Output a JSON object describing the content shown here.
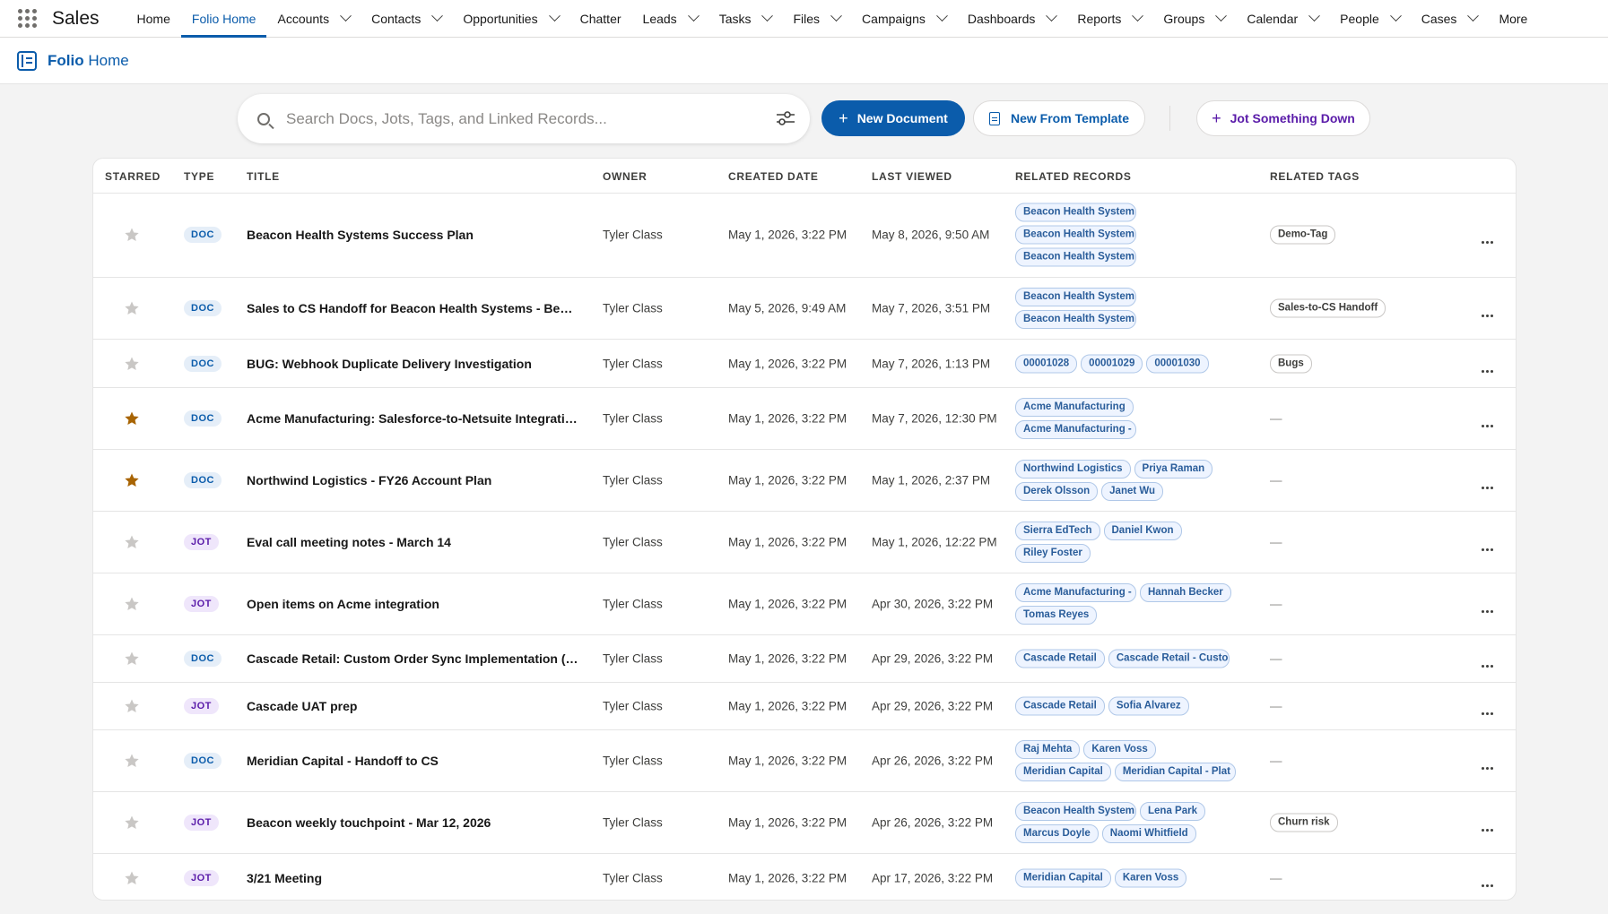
{
  "app": {
    "name": "Sales"
  },
  "nav": [
    {
      "label": "Home",
      "dropdown": false,
      "active": false
    },
    {
      "label": "Folio Home",
      "dropdown": false,
      "active": true
    },
    {
      "label": "Accounts",
      "dropdown": true,
      "active": false
    },
    {
      "label": "Contacts",
      "dropdown": true,
      "active": false
    },
    {
      "label": "Opportunities",
      "dropdown": true,
      "active": false
    },
    {
      "label": "Chatter",
      "dropdown": false,
      "active": false
    },
    {
      "label": "Leads",
      "dropdown": true,
      "active": false
    },
    {
      "label": "Tasks",
      "dropdown": true,
      "active": false
    },
    {
      "label": "Files",
      "dropdown": true,
      "active": false
    },
    {
      "label": "Campaigns",
      "dropdown": true,
      "active": false
    },
    {
      "label": "Dashboards",
      "dropdown": true,
      "active": false
    },
    {
      "label": "Reports",
      "dropdown": true,
      "active": false
    },
    {
      "label": "Groups",
      "dropdown": true,
      "active": false
    },
    {
      "label": "Calendar",
      "dropdown": true,
      "active": false
    },
    {
      "label": "People",
      "dropdown": true,
      "active": false
    },
    {
      "label": "Cases",
      "dropdown": true,
      "active": false
    },
    {
      "label": "More",
      "dropdown": false,
      "active": false
    }
  ],
  "page": {
    "title_bold": "Folio",
    "title_rest": " Home"
  },
  "search": {
    "placeholder": "Search Docs, Jots, Tags, and Linked Records..."
  },
  "toolbar": {
    "new_document": "New Document",
    "new_from_template": "New From Template",
    "jot": "Jot Something Down"
  },
  "table": {
    "headers": {
      "starred": "STARRED",
      "type": "TYPE",
      "title": "TITLE",
      "owner": "OWNER",
      "created": "CREATED DATE",
      "viewed": "LAST VIEWED",
      "records": "RELATED RECORDS",
      "tags": "RELATED TAGS"
    },
    "rows": [
      {
        "starred": false,
        "type": "DOC",
        "title": "Beacon Health Systems Success Plan",
        "owner": "Tyler Class",
        "created": "May 1, 2026, 3:22 PM",
        "viewed": "May 8, 2026, 9:50 AM",
        "records": [
          "Beacon Health System",
          "Beacon Health System",
          "Beacon Health System"
        ],
        "records_layout": "col",
        "tags": [
          "Demo-Tag"
        ]
      },
      {
        "starred": false,
        "type": "DOC",
        "title": "Sales to CS Handoff for Beacon Health Systems - Behavi...",
        "owner": "Tyler Class",
        "created": "May 5, 2026, 9:49 AM",
        "viewed": "May 7, 2026, 3:51 PM",
        "records": [
          "Beacon Health System",
          "Beacon Health System"
        ],
        "records_layout": "col",
        "tags": [
          "Sales-to-CS Handoff"
        ]
      },
      {
        "starred": false,
        "type": "DOC",
        "title": "BUG: Webhook Duplicate Delivery Investigation",
        "owner": "Tyler Class",
        "created": "May 1, 2026, 3:22 PM",
        "viewed": "May 7, 2026, 1:13 PM",
        "records": [
          "00001028",
          "00001029",
          "00001030"
        ],
        "records_layout": "wrap",
        "tags": [
          "Bugs"
        ]
      },
      {
        "starred": true,
        "type": "DOC",
        "title": "Acme Manufacturing: Salesforce-to-Netsuite Integratio...",
        "owner": "Tyler Class",
        "created": "May 1, 2026, 3:22 PM",
        "viewed": "May 7, 2026, 12:30 PM",
        "records": [
          "Acme Manufacturing",
          "Acme Manufacturing -"
        ],
        "records_layout": "col",
        "tags": []
      },
      {
        "starred": true,
        "type": "DOC",
        "title": "Northwind Logistics - FY26 Account Plan",
        "owner": "Tyler Class",
        "created": "May 1, 2026, 3:22 PM",
        "viewed": "May 1, 2026, 2:37 PM",
        "records": [
          "Northwind Logistics",
          "Priya Raman",
          "Derek Olsson",
          "Janet Wu"
        ],
        "records_layout": "wrap",
        "tags": []
      },
      {
        "starred": false,
        "type": "JOT",
        "title": "Eval call meeting notes - March 14",
        "owner": "Tyler Class",
        "created": "May 1, 2026, 3:22 PM",
        "viewed": "May 1, 2026, 12:22 PM",
        "records": [
          "Sierra EdTech",
          "Daniel Kwon",
          "Riley Foster"
        ],
        "records_layout": "wrap",
        "tags": []
      },
      {
        "starred": false,
        "type": "JOT",
        "title": "Open items on Acme integration",
        "owner": "Tyler Class",
        "created": "May 1, 2026, 3:22 PM",
        "viewed": "Apr 30, 2026, 3:22 PM",
        "records": [
          "Acme Manufacturing -",
          "Hannah Becker",
          "Tomas Reyes"
        ],
        "records_layout": "wrap",
        "tags": []
      },
      {
        "starred": false,
        "type": "DOC",
        "title": "Cascade Retail: Custom Order Sync Implementation (Ph...",
        "owner": "Tyler Class",
        "created": "May 1, 2026, 3:22 PM",
        "viewed": "Apr 29, 2026, 3:22 PM",
        "records": [
          "Cascade Retail",
          "Cascade Retail - Custo"
        ],
        "records_layout": "wrap",
        "tags": []
      },
      {
        "starred": false,
        "type": "JOT",
        "title": "Cascade UAT prep",
        "owner": "Tyler Class",
        "created": "May 1, 2026, 3:22 PM",
        "viewed": "Apr 29, 2026, 3:22 PM",
        "records": [
          "Cascade Retail",
          "Sofia Alvarez"
        ],
        "records_layout": "wrap",
        "tags": []
      },
      {
        "starred": false,
        "type": "DOC",
        "title": "Meridian Capital - Handoff to CS",
        "owner": "Tyler Class",
        "created": "May 1, 2026, 3:22 PM",
        "viewed": "Apr 26, 2026, 3:22 PM",
        "records": [
          "Raj Mehta",
          "Karen Voss",
          "Meridian Capital",
          "Meridian Capital - Plat"
        ],
        "records_layout": "wrap",
        "tags": []
      },
      {
        "starred": false,
        "type": "JOT",
        "title": "Beacon weekly touchpoint - Mar 12, 2026",
        "owner": "Tyler Class",
        "created": "May 1, 2026, 3:22 PM",
        "viewed": "Apr 26, 2026, 3:22 PM",
        "records": [
          "Beacon Health System",
          "Lena Park",
          "Marcus Doyle",
          "Naomi Whitfield"
        ],
        "records_layout": "wrap",
        "tags": [
          "Churn risk"
        ]
      },
      {
        "starred": false,
        "type": "JOT",
        "title": "3/21 Meeting",
        "owner": "Tyler Class",
        "created": "May 1, 2026, 3:22 PM",
        "viewed": "Apr 17, 2026, 3:22 PM",
        "records": [
          "Meridian Capital",
          "Karen Voss"
        ],
        "records_layout": "wrap",
        "tags": []
      }
    ],
    "empty_tag": "—"
  },
  "colors": {
    "brand": "#0b5cab",
    "star_on": "#a86403",
    "star_off": "#c9c7c5",
    "jot": "#5a1ba9"
  }
}
